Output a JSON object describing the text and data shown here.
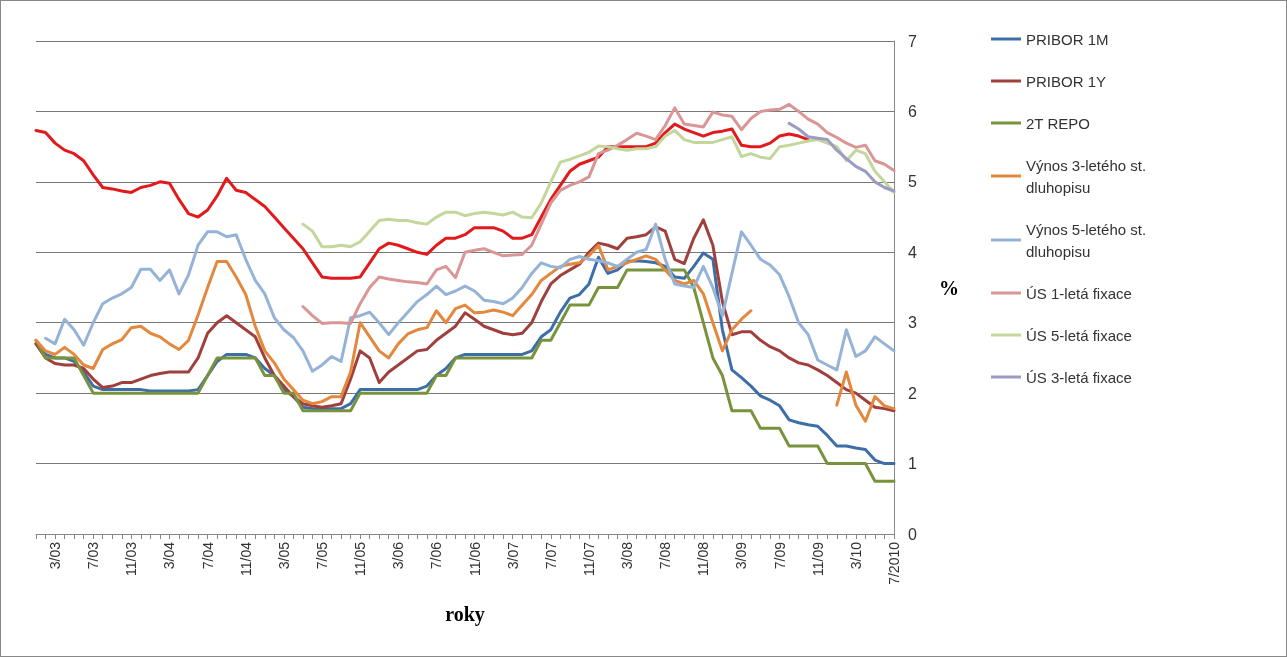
{
  "chart_data": {
    "type": "line",
    "xlabel": "roky",
    "ylabel": "%",
    "categories": [
      null,
      null,
      "3/03",
      null,
      null,
      null,
      "7/03",
      null,
      null,
      null,
      "11/03",
      null,
      null,
      null,
      "3/04",
      null,
      null,
      null,
      "7/04",
      null,
      null,
      null,
      "11/04",
      null,
      null,
      null,
      "3/05",
      null,
      null,
      null,
      "7/05",
      null,
      null,
      null,
      "11/05",
      null,
      null,
      null,
      "3/06",
      null,
      null,
      null,
      "7/06",
      null,
      null,
      null,
      "11/06",
      null,
      null,
      null,
      "3/07",
      null,
      null,
      null,
      "7/07",
      null,
      null,
      null,
      "11/07",
      null,
      null,
      null,
      "3/08",
      null,
      null,
      null,
      "7/08",
      null,
      null,
      null,
      "11/08",
      null,
      null,
      null,
      "3/09",
      null,
      null,
      null,
      "7/09",
      null,
      null,
      null,
      "11/09",
      null,
      null,
      null,
      "3/10",
      null,
      null,
      null,
      "7/2010"
    ],
    "ylim": [
      0,
      7
    ],
    "yticks": [
      0,
      1,
      2,
      3,
      4,
      5,
      6,
      7
    ],
    "grid": "y",
    "legend": "right",
    "marker": "none",
    "line_style": "solid",
    "series": [
      {
        "name": "PRIBOR 1M",
        "color": "#3d6ea8",
        "values": [
          2.7,
          2.55,
          2.5,
          2.5,
          2.45,
          2.3,
          2.1,
          2.05,
          2.05,
          2.05,
          2.05,
          2.05,
          2.03,
          2.03,
          2.03,
          2.03,
          2.03,
          2.05,
          2.25,
          2.45,
          2.55,
          2.55,
          2.55,
          2.5,
          2.35,
          2.25,
          2.05,
          1.95,
          1.8,
          1.78,
          1.78,
          1.78,
          1.78,
          1.85,
          2.05,
          2.05,
          2.05,
          2.05,
          2.05,
          2.05,
          2.05,
          2.1,
          2.25,
          2.35,
          2.5,
          2.55,
          2.55,
          2.55,
          2.55,
          2.55,
          2.55,
          2.55,
          2.6,
          2.8,
          2.9,
          3.15,
          3.35,
          3.4,
          3.55,
          3.93,
          3.7,
          3.75,
          3.87,
          3.88,
          3.87,
          3.85,
          3.8,
          3.65,
          3.63,
          3.8,
          3.99,
          3.9,
          2.9,
          2.33,
          2.22,
          2.1,
          1.96,
          1.9,
          1.82,
          1.62,
          1.58,
          1.55,
          1.53,
          1.4,
          1.25,
          1.25,
          1.22,
          1.2,
          1.05,
          1.0,
          1.0
        ]
      },
      {
        "name": "PRIBOR 1Y",
        "color": "#a0403d",
        "values": [
          2.7,
          2.5,
          2.42,
          2.4,
          2.4,
          2.35,
          2.2,
          2.08,
          2.1,
          2.15,
          2.15,
          2.2,
          2.25,
          2.28,
          2.3,
          2.3,
          2.3,
          2.5,
          2.85,
          3.0,
          3.1,
          3.0,
          2.9,
          2.8,
          2.5,
          2.25,
          2.1,
          1.95,
          1.85,
          1.82,
          1.8,
          1.82,
          1.85,
          2.2,
          2.6,
          2.5,
          2.15,
          2.3,
          2.4,
          2.5,
          2.6,
          2.62,
          2.75,
          2.85,
          2.95,
          3.14,
          3.05,
          2.95,
          2.9,
          2.85,
          2.83,
          2.85,
          3.0,
          3.3,
          3.55,
          3.67,
          3.75,
          3.83,
          4.0,
          4.13,
          4.1,
          4.05,
          4.2,
          4.22,
          4.25,
          4.36,
          4.3,
          3.9,
          3.84,
          4.2,
          4.46,
          4.1,
          3.3,
          2.83,
          2.87,
          2.87,
          2.75,
          2.66,
          2.6,
          2.5,
          2.43,
          2.4,
          2.33,
          2.25,
          2.15,
          2.05,
          2.0,
          1.9,
          1.8,
          1.78,
          1.75
        ]
      },
      {
        "name": "2T REPO",
        "color": "#77933c",
        "values": [
          2.75,
          2.5,
          2.5,
          2.5,
          2.5,
          2.25,
          2.0,
          2.0,
          2.0,
          2.0,
          2.0,
          2.0,
          2.0,
          2.0,
          2.0,
          2.0,
          2.0,
          2.0,
          2.25,
          2.5,
          2.5,
          2.5,
          2.5,
          2.5,
          2.25,
          2.25,
          2.0,
          2.0,
          1.75,
          1.75,
          1.75,
          1.75,
          1.75,
          1.75,
          2.0,
          2.0,
          2.0,
          2.0,
          2.0,
          2.0,
          2.0,
          2.0,
          2.25,
          2.25,
          2.5,
          2.5,
          2.5,
          2.5,
          2.5,
          2.5,
          2.5,
          2.5,
          2.5,
          2.75,
          2.75,
          3.0,
          3.25,
          3.25,
          3.25,
          3.5,
          3.5,
          3.5,
          3.75,
          3.75,
          3.75,
          3.75,
          3.75,
          3.75,
          3.75,
          3.5,
          3.0,
          2.5,
          2.25,
          1.75,
          1.75,
          1.75,
          1.5,
          1.5,
          1.5,
          1.25,
          1.25,
          1.25,
          1.25,
          1.0,
          1.0,
          1.0,
          1.0,
          1.0,
          0.75,
          0.75,
          0.75
        ]
      },
      {
        "color": "#e31a1c",
        "values": [
          5.73,
          5.7,
          5.55,
          5.45,
          5.4,
          5.3,
          5.1,
          4.92,
          4.9,
          4.87,
          4.85,
          4.92,
          4.95,
          5.0,
          4.98,
          4.75,
          4.55,
          4.5,
          4.6,
          4.8,
          5.05,
          4.88,
          4.85,
          4.75,
          4.65,
          4.5,
          4.35,
          4.2,
          4.05,
          3.85,
          3.65,
          3.63,
          3.63,
          3.63,
          3.65,
          3.85,
          4.05,
          4.13,
          4.1,
          4.05,
          4.0,
          3.97,
          4.1,
          4.2,
          4.2,
          4.25,
          4.35,
          4.35,
          4.35,
          4.3,
          4.2,
          4.2,
          4.25,
          4.5,
          4.75,
          4.95,
          5.15,
          5.25,
          5.3,
          5.35,
          5.5,
          5.5,
          5.5,
          5.5,
          5.5,
          5.55,
          5.7,
          5.82,
          5.75,
          5.7,
          5.65,
          5.7,
          5.72,
          5.75,
          5.52,
          5.5,
          5.5,
          5.55,
          5.65,
          5.68,
          5.65,
          5.6,
          null,
          null,
          null,
          null,
          null,
          null,
          null,
          null,
          null
        ]
      },
      {
        "name": "Výnos 3-letého st. dluhopisu",
        "color": "#e3883c",
        "values": [
          2.75,
          2.6,
          2.55,
          2.65,
          2.55,
          2.4,
          2.35,
          2.62,
          2.7,
          2.76,
          2.93,
          2.95,
          2.85,
          2.8,
          2.7,
          2.62,
          2.75,
          3.11,
          3.5,
          3.87,
          3.87,
          3.65,
          3.4,
          2.95,
          2.6,
          2.43,
          2.2,
          2.05,
          1.9,
          1.85,
          1.88,
          1.95,
          1.95,
          2.3,
          3.0,
          2.8,
          2.6,
          2.5,
          2.7,
          2.84,
          2.9,
          2.93,
          3.17,
          3.0,
          3.2,
          3.25,
          3.14,
          3.15,
          3.18,
          3.15,
          3.1,
          3.25,
          3.4,
          3.6,
          3.7,
          3.8,
          3.83,
          3.85,
          3.95,
          4.1,
          3.75,
          3.8,
          3.85,
          3.9,
          3.95,
          3.9,
          3.75,
          3.6,
          3.55,
          3.6,
          3.41,
          3.0,
          2.6,
          2.9,
          3.05,
          3.17,
          null,
          null,
          null,
          null,
          null,
          null,
          null,
          null,
          1.83,
          2.3,
          1.83,
          1.6,
          1.95,
          1.82,
          1.78
        ]
      },
      {
        "name": "Výnos 5-letého st. dluhopisu",
        "color": "#95b3d7",
        "values": [
          null,
          2.78,
          2.7,
          3.05,
          2.9,
          2.68,
          3.0,
          3.27,
          3.35,
          3.41,
          3.5,
          3.76,
          3.76,
          3.6,
          3.75,
          3.41,
          3.68,
          4.1,
          4.29,
          4.29,
          4.22,
          4.25,
          3.9,
          3.6,
          3.41,
          3.07,
          2.9,
          2.79,
          2.6,
          2.31,
          2.4,
          2.52,
          2.45,
          3.07,
          3.1,
          3.15,
          3.0,
          2.83,
          3.0,
          3.15,
          3.3,
          3.4,
          3.52,
          3.4,
          3.45,
          3.52,
          3.45,
          3.32,
          3.3,
          3.27,
          3.35,
          3.5,
          3.7,
          3.85,
          3.8,
          3.78,
          3.9,
          3.94,
          3.9,
          3.88,
          3.85,
          3.8,
          3.9,
          4.0,
          4.04,
          4.4,
          3.9,
          3.55,
          3.52,
          3.5,
          3.8,
          3.5,
          3.1,
          3.7,
          4.29,
          4.1,
          3.9,
          3.82,
          3.68,
          3.37,
          3.0,
          2.83,
          2.47,
          2.4,
          2.33,
          2.9,
          2.52,
          2.6,
          2.8,
          2.7,
          2.6
        ]
      },
      {
        "name": "ÚS 1-letá fixace",
        "color": "#d99694",
        "values": [
          null,
          null,
          null,
          null,
          null,
          null,
          null,
          null,
          null,
          null,
          null,
          null,
          null,
          null,
          null,
          null,
          null,
          null,
          null,
          null,
          null,
          null,
          null,
          null,
          null,
          null,
          null,
          null,
          3.23,
          3.1,
          2.99,
          3.0,
          3.0,
          2.99,
          3.27,
          3.5,
          3.65,
          3.62,
          3.6,
          3.58,
          3.57,
          3.55,
          3.75,
          3.8,
          3.64,
          4.0,
          4.03,
          4.05,
          4.0,
          3.95,
          3.96,
          3.97,
          4.1,
          4.4,
          4.7,
          4.88,
          4.95,
          5.0,
          5.07,
          5.4,
          5.45,
          5.52,
          5.6,
          5.69,
          5.65,
          5.6,
          5.8,
          6.05,
          5.82,
          5.8,
          5.78,
          5.99,
          5.95,
          5.93,
          5.74,
          5.9,
          6.0,
          6.02,
          6.03,
          6.1,
          6.0,
          5.89,
          5.82,
          5.7,
          5.63,
          5.55,
          5.49,
          5.52,
          5.3,
          5.25,
          5.16
        ]
      },
      {
        "name": "ÚS 5-letá fixace",
        "color": "#c3d69b",
        "values": [
          null,
          null,
          null,
          null,
          null,
          null,
          null,
          null,
          null,
          null,
          null,
          null,
          null,
          null,
          null,
          null,
          null,
          null,
          null,
          null,
          null,
          null,
          null,
          null,
          null,
          null,
          null,
          null,
          4.4,
          4.3,
          4.08,
          4.08,
          4.1,
          4.08,
          4.15,
          4.3,
          4.45,
          4.47,
          4.45,
          4.45,
          4.42,
          4.4,
          4.5,
          4.57,
          4.57,
          4.52,
          4.55,
          4.57,
          4.55,
          4.53,
          4.57,
          4.5,
          4.49,
          4.7,
          5.0,
          5.28,
          5.32,
          5.37,
          5.42,
          5.51,
          5.5,
          5.47,
          5.45,
          5.47,
          5.47,
          5.5,
          5.65,
          5.73,
          5.6,
          5.56,
          5.56,
          5.56,
          5.6,
          5.64,
          5.36,
          5.4,
          5.35,
          5.33,
          5.5,
          5.52,
          5.55,
          5.58,
          5.6,
          5.55,
          5.5,
          5.3,
          5.45,
          5.4,
          5.15,
          5.0,
          4.85
        ]
      },
      {
        "name": "ÚS 3-letá fixace",
        "color": "#9a9cc4",
        "values": [
          null,
          null,
          null,
          null,
          null,
          null,
          null,
          null,
          null,
          null,
          null,
          null,
          null,
          null,
          null,
          null,
          null,
          null,
          null,
          null,
          null,
          null,
          null,
          null,
          null,
          null,
          null,
          null,
          null,
          null,
          null,
          null,
          null,
          null,
          null,
          null,
          null,
          null,
          null,
          null,
          null,
          null,
          null,
          null,
          null,
          null,
          null,
          null,
          null,
          null,
          null,
          null,
          null,
          null,
          null,
          null,
          null,
          null,
          null,
          null,
          null,
          null,
          null,
          null,
          null,
          null,
          null,
          null,
          null,
          null,
          null,
          null,
          null,
          null,
          null,
          null,
          null,
          null,
          null,
          5.83,
          5.75,
          5.64,
          5.62,
          5.6,
          5.45,
          5.33,
          5.22,
          5.15,
          5.0,
          4.92,
          4.87
        ]
      }
    ]
  }
}
